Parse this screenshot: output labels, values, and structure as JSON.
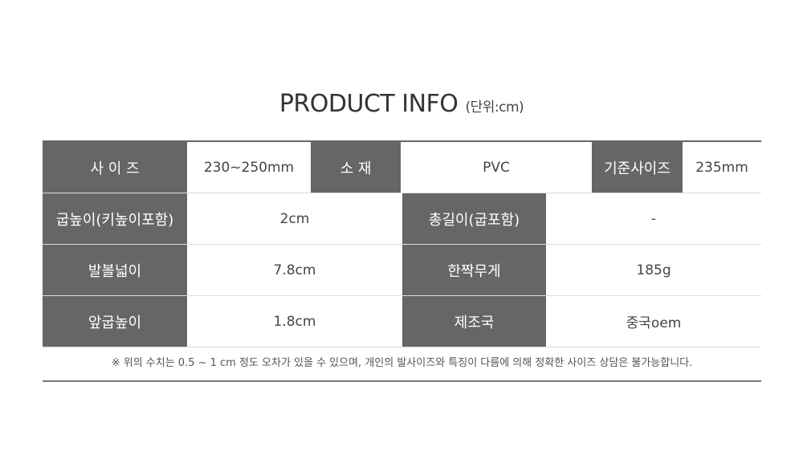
{
  "title": "PRODUCT INFO",
  "unit": "(단위:cm)",
  "row1": [
    {
      "label": "사 이 즈",
      "value": "230~250mm"
    },
    {
      "label": "소 재",
      "value": "PVC"
    },
    {
      "label": "기준사이즈",
      "value": "235mm"
    }
  ],
  "rows": [
    [
      {
        "label": "굽높이(키높이포함)",
        "value": "2cm"
      },
      {
        "label": "총길이(굽포함)",
        "value": "-"
      }
    ],
    [
      {
        "label": "발볼넓이",
        "value": "7.8cm"
      },
      {
        "label": "한짝무게",
        "value": "185g"
      }
    ],
    [
      {
        "label": "앞굽높이",
        "value": "1.8cm"
      },
      {
        "label": "제조국",
        "value": "중국oem"
      }
    ]
  ],
  "note": "※ 위의 수치는 0.5 ~ 1 cm 정도 오차가 있을 수 있으며, 개인의 발사이즈와 특징이 다름에 의해 정확한 사이즈 상담은 불가능합니다.",
  "colors": {
    "header_bg": "#666666",
    "border": "#dddddd"
  }
}
